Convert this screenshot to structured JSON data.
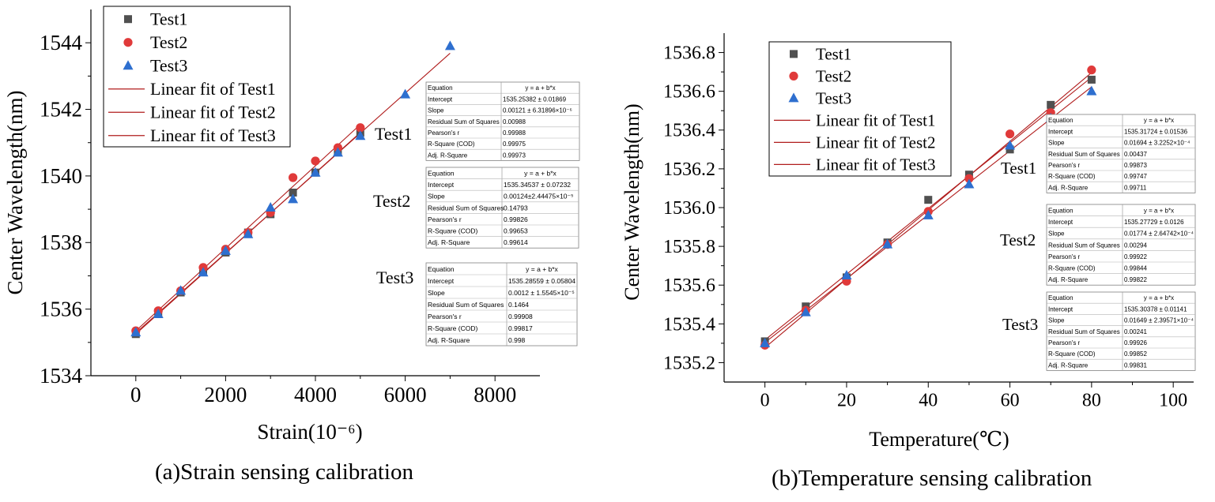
{
  "colors": {
    "test1": "#505050",
    "test2": "#e03a3a",
    "test3": "#2e6fcf",
    "fit": "#b01c1c"
  },
  "chart_data": [
    {
      "type": "scatter",
      "caption": "(a)Strain sensing calibration",
      "xlabel": "Strain(10⁻⁶)",
      "ylabel": "Center Wavelength(nm)",
      "xlim": [
        -1000,
        9000
      ],
      "ylim": [
        1534,
        1545
      ],
      "xticks": [
        0,
        2000,
        4000,
        6000,
        8000
      ],
      "yticks": [
        1534,
        1536,
        1538,
        1540,
        1542,
        1544
      ],
      "ytick_decimals": 0,
      "series": [
        {
          "name": "Test1",
          "marker": "square",
          "color_key": "test1",
          "x": [
            0,
            500,
            1000,
            1500,
            2000,
            2500,
            3000,
            3500,
            4000,
            4500,
            5000
          ],
          "y": [
            1535.25,
            1535.9,
            1536.5,
            1537.15,
            1537.7,
            1538.3,
            1538.85,
            1539.5,
            1540.1,
            1540.75,
            1541.3
          ],
          "fit_name": "Linear fit of Test1",
          "intercept": 1535.25382,
          "slope": 0.00121
        },
        {
          "name": "Test2",
          "marker": "circle",
          "color_key": "test2",
          "x": [
            0,
            500,
            1000,
            1500,
            2000,
            2500,
            3000,
            3500,
            4000,
            4500,
            5000
          ],
          "y": [
            1535.35,
            1535.95,
            1536.55,
            1537.25,
            1537.8,
            1538.3,
            1538.9,
            1539.95,
            1540.45,
            1540.85,
            1541.45
          ],
          "fit_name": "Linear fit of Test2",
          "intercept": 1535.34537,
          "slope": 0.00124
        },
        {
          "name": "Test3",
          "marker": "triangle",
          "color_key": "test3",
          "x": [
            0,
            500,
            1000,
            1500,
            2000,
            2500,
            3000,
            3500,
            4000,
            4500,
            5000,
            6000,
            7000
          ],
          "y": [
            1535.3,
            1535.85,
            1536.55,
            1537.1,
            1537.75,
            1538.25,
            1539.05,
            1539.3,
            1540.1,
            1540.7,
            1541.2,
            1542.45,
            1543.9
          ],
          "fit_name": "Linear fit of Test3",
          "intercept": 1535.28559,
          "slope": 0.0012
        }
      ],
      "stat_tables": [
        {
          "label": "Test1",
          "rows": [
            [
              "Equation",
              "y = a + b*x"
            ],
            [
              "Intercept",
              "1535.25382 ± 0.01869"
            ],
            [
              "Slope",
              "0.00121 ± 6.31896×10⁻⁶"
            ],
            [
              "Residual Sum of Squares",
              "0.00988"
            ],
            [
              "Pearson's r",
              "0.99988"
            ],
            [
              "R-Square (COD)",
              "0.99975"
            ],
            [
              "Adj. R-Square",
              "0.99973"
            ]
          ]
        },
        {
          "label": "Test2",
          "rows": [
            [
              "Equation",
              "y = a + b*x"
            ],
            [
              "Intercept",
              "1535.34537 ± 0.07232"
            ],
            [
              "Slope",
              "0.00124±2.44475×10⁻⁵"
            ],
            [
              "Residual Sum of Squares",
              "0.14793"
            ],
            [
              "Pearson's r",
              "0.99826"
            ],
            [
              "R-Square (COD)",
              "0.99653"
            ],
            [
              "Adj. R-Square",
              "0.99614"
            ]
          ]
        },
        {
          "label": "Test3",
          "rows": [
            [
              "Equation",
              "y = a + b*x"
            ],
            [
              "Intercept",
              "1535.28559 ± 0.05804"
            ],
            [
              "Slope",
              "0.0012 ± 1.5545×10⁻⁵"
            ],
            [
              "Residual Sum of Squares",
              "0.1464"
            ],
            [
              "Pearson's r",
              "0.99908"
            ],
            [
              "R-Square (COD)",
              "0.99817"
            ],
            [
              "Adj. R-Square",
              "0.998"
            ]
          ]
        }
      ]
    },
    {
      "type": "scatter",
      "caption": "(b)Temperature sensing calibration",
      "xlabel": "Temperature(℃)",
      "ylabel": "Center Wavelength(nm)",
      "xlim": [
        -10,
        105
      ],
      "ylim": [
        1535.1,
        1536.9
      ],
      "xticks": [
        0,
        20,
        40,
        60,
        80,
        100
      ],
      "yticks": [
        1535.2,
        1535.4,
        1535.6,
        1535.8,
        1536.0,
        1536.2,
        1536.4,
        1536.6,
        1536.8
      ],
      "ytick_decimals": 1,
      "series": [
        {
          "name": "Test1",
          "marker": "square",
          "color_key": "test1",
          "x": [
            0,
            10,
            20,
            30,
            40,
            50,
            60,
            70,
            80
          ],
          "y": [
            1535.31,
            1535.49,
            1535.64,
            1535.82,
            1536.04,
            1536.17,
            1536.3,
            1536.53,
            1536.66
          ],
          "fit_name": "Linear fit of Test1",
          "intercept": 1535.31724,
          "slope": 0.01694
        },
        {
          "name": "Test2",
          "marker": "circle",
          "color_key": "test2",
          "x": [
            0,
            10,
            20,
            30,
            40,
            50,
            60,
            70,
            80
          ],
          "y": [
            1535.29,
            1535.47,
            1535.62,
            1535.81,
            1535.98,
            1536.15,
            1536.38,
            1536.49,
            1536.71
          ],
          "fit_name": "Linear fit of Test2",
          "intercept": 1535.27729,
          "slope": 0.01774
        },
        {
          "name": "Test3",
          "marker": "triangle",
          "color_key": "test3",
          "x": [
            0,
            10,
            20,
            30,
            40,
            50,
            60,
            70,
            80
          ],
          "y": [
            1535.3,
            1535.46,
            1535.65,
            1535.81,
            1535.96,
            1536.12,
            1536.32,
            1536.46,
            1536.6
          ],
          "fit_name": "Linear fit of Test3",
          "intercept": 1535.30378,
          "slope": 0.01649
        }
      ],
      "stat_tables": [
        {
          "label": "Test1",
          "rows": [
            [
              "Equation",
              "y = a + b*x"
            ],
            [
              "Intercept",
              "1535.31724 ± 0.01536"
            ],
            [
              "Slope",
              "0.01694 ± 3.2252×10⁻⁴"
            ],
            [
              "Residual Sum of Squares",
              "0.00437"
            ],
            [
              "Pearson's r",
              "0.99873"
            ],
            [
              "R-Square (COD)",
              "0.99747"
            ],
            [
              "Adj. R-Square",
              "0.99711"
            ]
          ]
        },
        {
          "label": "Test2",
          "rows": [
            [
              "Equation",
              "y = a + b*x"
            ],
            [
              "Intercept",
              "1535.27729 ± 0.0126"
            ],
            [
              "Slope",
              "0.01774 ± 2.64742×10⁻⁴"
            ],
            [
              "Residual Sum of Squares",
              "0.00294"
            ],
            [
              "Pearson's r",
              "0.99922"
            ],
            [
              "R-Square (COD)",
              "0.99844"
            ],
            [
              "Adj. R-Square",
              "0.99822"
            ]
          ]
        },
        {
          "label": "Test3",
          "rows": [
            [
              "Equation",
              "y = a + b*x"
            ],
            [
              "Intercept",
              "1535.30378 ± 0.01141"
            ],
            [
              "Slope",
              "0.01649 ± 2.39571×10⁻⁴"
            ],
            [
              "Residual Sum of Squares",
              "0.00241"
            ],
            [
              "Pearson's r",
              "0.99926"
            ],
            [
              "R-Square (COD)",
              "0.99852"
            ],
            [
              "Adj. R-Square",
              "0.99831"
            ]
          ]
        }
      ]
    }
  ]
}
